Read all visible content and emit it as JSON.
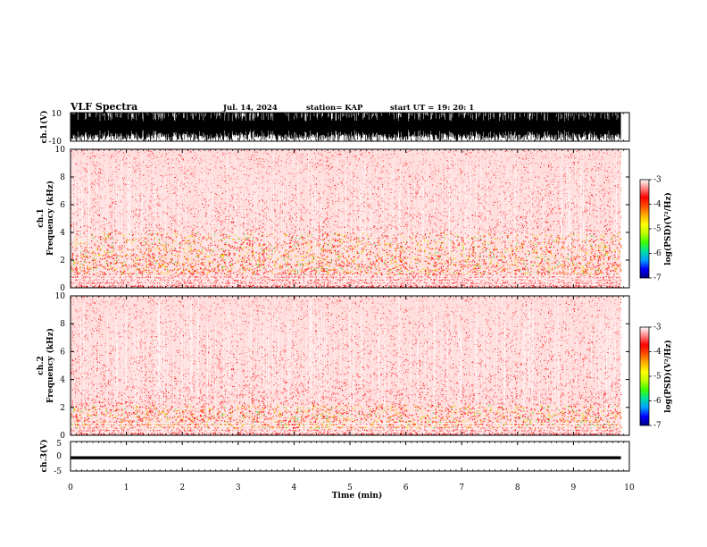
{
  "header": {
    "title": "VLF Spectra",
    "date": "Jul. 14, 2024",
    "station": "station= KAP",
    "start": "start UT =  19: 20: 1"
  },
  "colors": {
    "colorbar": [
      "#000080",
      "#0000ff",
      "#00a0ff",
      "#00e0a0",
      "#40ff00",
      "#c0ff00",
      "#ffff00",
      "#ffb000",
      "#ff5000",
      "#ff0000",
      "#ff8080",
      "#ffffff"
    ],
    "background": "#ffffff"
  },
  "chart_data": [
    {
      "type": "line",
      "panel": "ch1-waveform",
      "ylabel": "ch.1(V)",
      "ylim": [
        -10,
        10
      ],
      "yticks": [
        "10",
        "-10"
      ],
      "xlim": [
        0,
        10
      ],
      "description_values": {
        "dense_oscillation_amplitude": [
          -10,
          10
        ],
        "ends_at_min": 9.85
      }
    },
    {
      "type": "heatmap",
      "panel": "ch1-spectrogram",
      "ylabel_line1": "ch.1",
      "ylabel_line2": "Frequency (kHz)",
      "ylim": [
        0,
        10
      ],
      "yticks": [
        "0",
        "2",
        "4",
        "6",
        "8",
        "10"
      ],
      "xlim": [
        0,
        10
      ],
      "colorbar": {
        "label": "log(PSD)(V²/Hz)",
        "range": [
          -7,
          -3
        ],
        "ticks": [
          "-3",
          "-4",
          "-5",
          "-6",
          "-7"
        ]
      },
      "enhanced_band_khz": [
        1.0,
        4.0
      ],
      "data_end_min": 9.85
    },
    {
      "type": "heatmap",
      "panel": "ch2-spectrogram",
      "ylabel_line1": "ch.2",
      "ylabel_line2": "Frequency (kHz)",
      "ylim": [
        0,
        10
      ],
      "yticks": [
        "0",
        "2",
        "4",
        "6",
        "8",
        "10"
      ],
      "xlim": [
        0,
        10
      ],
      "colorbar": {
        "label": "log(PSD)(V²/Hz)",
        "range": [
          -7,
          -3
        ],
        "ticks": [
          "-3",
          "-4",
          "-5",
          "-6",
          "-7"
        ]
      },
      "enhanced_band_khz": [
        0.5,
        2.2
      ],
      "data_end_min": 9.85
    },
    {
      "type": "line",
      "panel": "ch3-waveform",
      "ylabel": "ch.3(V)",
      "ylim": [
        -5,
        5
      ],
      "yticks": [
        "5",
        "0",
        "-5"
      ],
      "xlim": [
        0,
        10
      ],
      "xticks": [
        "0",
        "1",
        "2",
        "3",
        "4",
        "5",
        "6",
        "7",
        "8",
        "9",
        "10"
      ],
      "xlabel": "Time (min)",
      "description_values": {
        "band_level_v": -0.5,
        "band_halfwidth_v": 0.5
      }
    }
  ]
}
